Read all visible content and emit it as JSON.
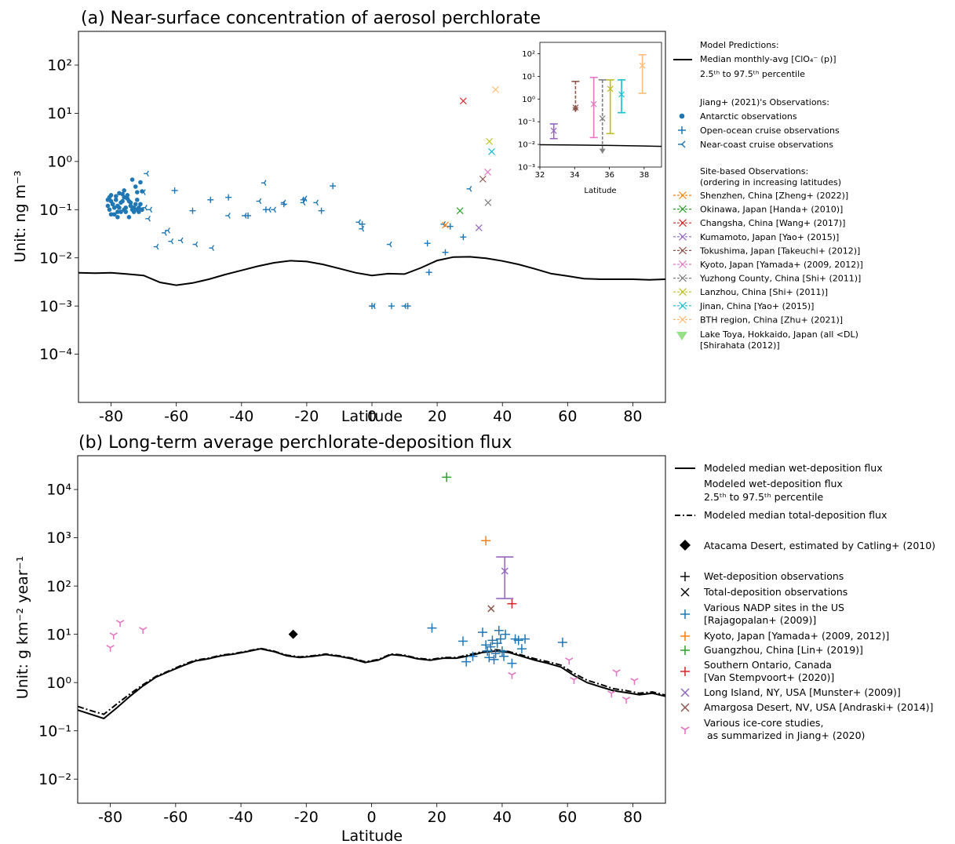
{
  "chart_data": [
    {
      "type": "scatter",
      "title": "(a) Near-surface concentration of aerosol perchlorate",
      "xlabel": "Latitude",
      "ylabel": "Unit: ng m⁻³",
      "xlim": [
        -90,
        90
      ],
      "ylim_log10": [
        -5,
        2.7
      ],
      "yscale": "log",
      "xticks": [
        "-80",
        "-60",
        "-40",
        "-20",
        "0",
        "20",
        "40",
        "60",
        "80"
      ],
      "yticks": [
        "10⁻⁴",
        "10⁻³",
        "10⁻²",
        "10⁻¹",
        "10⁰",
        "10¹",
        "10²"
      ],
      "legend": {
        "placement": "outside right",
        "group_model": "Model Predictions:",
        "model_median": "Median monthly-avg [ClO₄⁻ (p)]",
        "model_range": "2.5ᵗʰ to 97.5ᵗʰ percentile",
        "group_jiang": "Jiang+ (2021)'s Observations:",
        "antarctic": "Antarctic observations",
        "openocean": "Open-ocean cruise observations",
        "nearcoast": "Near-coast cruise observations",
        "group_site": "Site-based Observations:",
        "group_site_note": "(ordering in increasing latitudes)",
        "sites": [
          {
            "label": "Shenzhen, China [Zheng+ (2022)]",
            "color": "#ff7f0e"
          },
          {
            "label": "Okinawa, Japan [Handa+ (2010)]",
            "color": "#2ca02c"
          },
          {
            "label": "Changsha, China [Wang+ (2017)]",
            "color": "#d62728"
          },
          {
            "label": "Kumamoto, Japan [Yao+ (2015)]",
            "color": "#9467bd"
          },
          {
            "label": "Tokushima, Japan [Takeuchi+ (2012)]",
            "color": "#8c564b"
          },
          {
            "label": "Kyoto, Japan [Yamada+ (2009, 2012)]",
            "color": "#e377c2"
          },
          {
            "label": "Yuzhong County, China [Shi+ (2011)]",
            "color": "#7f7f7f"
          },
          {
            "label": "Lanzhou, China [Shi+ (2011)]",
            "color": "#bcbd22"
          },
          {
            "label": "Jinan, China [Yao+ (2015)]",
            "color": "#17becf"
          },
          {
            "label": "BTH region, China [Zhu+ (2021)]",
            "color": "#ffbb78"
          }
        ],
        "laketoya_1": "Lake Toya, Hokkaido, Japan (all <DL)",
        "laketoya_2": "[Shirahata (2012)]"
      },
      "model_median_line": {
        "x": [
          -90,
          -85,
          -80,
          -75,
          -70,
          -65,
          -60,
          -55,
          -50,
          -45,
          -40,
          -35,
          -30,
          -25,
          -20,
          -15,
          -10,
          -5,
          0,
          5,
          10,
          15,
          20,
          25,
          30,
          35,
          40,
          45,
          50,
          55,
          60,
          65,
          70,
          75,
          80,
          85,
          90
        ],
        "y": [
          0.0049,
          0.0048,
          0.0049,
          0.0046,
          0.0043,
          0.0031,
          0.0027,
          0.003,
          0.0036,
          0.0045,
          0.0055,
          0.0067,
          0.0079,
          0.0087,
          0.0084,
          0.0073,
          0.006,
          0.0049,
          0.0043,
          0.0047,
          0.0046,
          0.0062,
          0.0088,
          0.0104,
          0.0105,
          0.0098,
          0.0086,
          0.0073,
          0.0059,
          0.0047,
          0.0042,
          0.0037,
          0.0036,
          0.0036,
          0.0036,
          0.0035,
          0.0036
        ]
      },
      "antarctic": {
        "x": [
          -81,
          -80.5,
          -80,
          -79.5,
          -79,
          -78.5,
          -78,
          -77.5,
          -77,
          -76.5,
          -76,
          -75.5,
          -75,
          -74.5,
          -74,
          -73.5,
          -73,
          -72.5,
          -72,
          -71.5,
          -71,
          -70.5,
          -81,
          -80,
          -79,
          -78,
          -77,
          -76,
          -75,
          -74,
          -73,
          -72,
          -71,
          -80.5,
          -79.5,
          -78.5,
          -77.5,
          -76.5,
          -75.5,
          -74.5,
          -73.5,
          -72.5,
          -71.5,
          -80,
          -78,
          -76,
          -74,
          -72,
          -70.5
        ],
        "y": [
          0.16,
          0.1,
          0.2,
          0.13,
          0.08,
          0.19,
          0.12,
          0.22,
          0.09,
          0.15,
          0.25,
          0.11,
          0.17,
          0.07,
          0.14,
          0.42,
          0.11,
          0.3,
          0.23,
          0.09,
          0.13,
          0.24,
          0.12,
          0.15,
          0.11,
          0.09,
          0.14,
          0.1,
          0.2,
          0.12,
          0.09,
          0.16,
          0.37,
          0.18,
          0.13,
          0.16,
          0.11,
          0.21,
          0.09,
          0.15,
          0.1,
          0.13,
          0.11,
          0.08,
          0.07,
          0.18,
          0.12,
          0.1,
          0.1
        ]
      },
      "openocean": {
        "x": [
          -60.5,
          -55,
          -49.5,
          -44,
          -38,
          -32.5,
          -27,
          -21,
          -15.5,
          -12,
          -3,
          0,
          6,
          11,
          17,
          17.5,
          22.5,
          24,
          28
        ],
        "y": [
          0.25,
          0.095,
          0.16,
          0.18,
          0.075,
          0.1,
          0.13,
          0.16,
          0.095,
          0.31,
          0.05,
          0.001,
          0.001,
          0.001,
          0.02,
          0.005,
          0.013,
          0.045,
          0.027
        ]
      },
      "nearcoast": {
        "x": [
          -70,
          -69.5,
          -69,
          -68.5,
          -68,
          -66,
          -63.5,
          -62.5,
          -61.5,
          -58.5,
          -54,
          -49,
          -44,
          -39,
          -34.5,
          -33,
          -31.5,
          -30,
          -27,
          -21,
          -20.5,
          -17,
          -4,
          -3,
          0.5,
          5.5,
          10,
          22,
          30
        ],
        "y": [
          0.23,
          0.11,
          0.56,
          0.065,
          0.1,
          0.017,
          0.033,
          0.037,
          0.022,
          0.023,
          0.019,
          0.016,
          0.075,
          0.075,
          0.15,
          0.36,
          0.1,
          0.1,
          0.14,
          0.14,
          0.17,
          0.14,
          0.055,
          0.04,
          0.001,
          0.019,
          0.001,
          0.05,
          0.27
        ]
      },
      "sites": {
        "x": [
          22.5,
          27,
          28,
          32.8,
          34,
          35.5,
          35.6,
          36,
          36.7,
          37.9
        ],
        "y": [
          0.048,
          0.095,
          18,
          0.042,
          0.43,
          0.6,
          0.14,
          2.6,
          1.6,
          31
        ]
      },
      "inset": {
        "xlabel": "Latitude",
        "xlim": [
          32,
          39
        ],
        "ylim_log10": [
          -3,
          2.5
        ],
        "xticks": [
          "32",
          "34",
          "36",
          "38"
        ],
        "yticks": [
          "10⁻³",
          "10⁻²",
          "10⁻¹",
          "10⁰",
          "10¹",
          "10²"
        ],
        "model_line": {
          "x": [
            32,
            34,
            36,
            38,
            39
          ],
          "y": [
            0.0097,
            0.0094,
            0.009,
            0.0085,
            0.0082
          ]
        },
        "points": [
          {
            "x": 32.8,
            "y": 0.04,
            "lo": 0.018,
            "hi": 0.08,
            "color": "#9467bd"
          },
          {
            "x": 34.05,
            "y": 0.42,
            "lo": 0.27,
            "hi": 6,
            "color": "#8c564b",
            "dashed": true
          },
          {
            "x": 35.1,
            "y": 0.6,
            "lo": 0.02,
            "hi": 9,
            "color": "#e377c2"
          },
          {
            "x": 35.6,
            "y": 0.14,
            "lo": 0.004,
            "hi": 7,
            "color": "#7f7f7f",
            "dashed": true
          },
          {
            "x": 36.05,
            "y": 2.8,
            "lo": 0.03,
            "hi": 7,
            "color": "#bcbd22"
          },
          {
            "x": 36.7,
            "y": 1.6,
            "lo": 0.25,
            "hi": 7,
            "color": "#17becf"
          },
          {
            "x": 37.9,
            "y": 30,
            "lo": 1.8,
            "hi": 90,
            "color": "#ffbb78"
          }
        ]
      }
    },
    {
      "type": "scatter",
      "title": "(b) Long-term average perchlorate-deposition flux",
      "xlabel": "Latitude",
      "ylabel": "Unit: g km⁻² year⁻¹",
      "xlim": [
        -90,
        90
      ],
      "ylim_log10": [
        -2.5,
        4.7
      ],
      "yscale": "log",
      "xticks": [
        "-80",
        "-60",
        "-40",
        "-20",
        "0",
        "20",
        "40",
        "60",
        "80"
      ],
      "yticks": [
        "10⁻²",
        "10⁻¹",
        "10⁰",
        "10¹",
        "10²",
        "10³",
        "10⁴"
      ],
      "legend": {
        "placement": "outside right",
        "wet_median": "Modeled median wet-deposition flux",
        "wet_range_1": "Modeled wet-deposition flux",
        "wet_range_2": "2.5ᵗʰ to 97.5ᵗʰ percentile",
        "total_median": "Modeled median total-deposition flux",
        "atacama": "Atacama Desert, estimated by Catling+ (2010)",
        "wet_obs": "Wet-deposition observations",
        "total_obs": "Total-deposition observations",
        "nadp_1": "Various NADP sites in the US",
        "nadp_2": "[Rajagopalan+ (2009)]",
        "kyoto": "Kyoto, Japan [Yamada+ (2009, 2012)]",
        "guangzhou": "Guangzhou, China [Lin+ (2019)]",
        "ontario_1": "Southern Ontario, Canada",
        "ontario_2": "[Van Stempvoort+ (2020)]",
        "longisland": "Long Island, NY, USA [Munster+ (2009)]",
        "amargosa": "Amargosa Desert, NV, USA [Andraski+ (2014)]",
        "icecore_1": "Various ice-core studies,",
        "icecore_2": "as summarized in Jiang+ (2020)"
      },
      "wet_median": {
        "x": [
          -90,
          -85,
          -82,
          -78,
          -74,
          -70,
          -66,
          -62,
          -58,
          -54,
          -50,
          -46,
          -42,
          -38,
          -34,
          -30,
          -26,
          -22,
          -18,
          -14,
          -10,
          -6,
          -2,
          2,
          6,
          10,
          14,
          18,
          22,
          26,
          30,
          34,
          38,
          42,
          46,
          50,
          54,
          58,
          62,
          66,
          70,
          74,
          78,
          82,
          86,
          90
        ],
        "y": [
          0.27,
          0.21,
          0.18,
          0.3,
          0.52,
          0.85,
          1.3,
          1.7,
          2.2,
          2.8,
          3.1,
          3.6,
          3.9,
          4.4,
          5.0,
          4.4,
          3.6,
          3.3,
          3.5,
          3.8,
          3.5,
          3.1,
          2.6,
          2.9,
          3.8,
          3.6,
          3.1,
          2.9,
          3.2,
          3.2,
          3.6,
          4.2,
          4.5,
          4.2,
          3.5,
          2.9,
          2.5,
          2.1,
          1.4,
          1.0,
          0.82,
          0.68,
          0.62,
          0.56,
          0.6,
          0.52
        ]
      },
      "total_median": {
        "x": [
          -90,
          -85,
          -82,
          -78,
          -74,
          -70,
          -66,
          -62,
          -58,
          -54,
          -50,
          -46,
          -42,
          -38,
          -34,
          -30,
          -26,
          -22,
          -18,
          -14,
          -10,
          -6,
          -2,
          2,
          6,
          10,
          14,
          18,
          22,
          26,
          30,
          34,
          38,
          42,
          46,
          50,
          54,
          58,
          62,
          66,
          70,
          74,
          78,
          82,
          86,
          90
        ],
        "y": [
          0.32,
          0.25,
          0.22,
          0.36,
          0.58,
          0.9,
          1.35,
          1.75,
          2.3,
          2.9,
          3.2,
          3.7,
          4.0,
          4.5,
          5.1,
          4.5,
          3.7,
          3.4,
          3.6,
          3.9,
          3.6,
          3.2,
          2.7,
          3.0,
          3.9,
          3.7,
          3.2,
          3.0,
          3.3,
          3.3,
          3.8,
          4.4,
          4.8,
          4.4,
          3.7,
          3.1,
          2.7,
          2.3,
          1.55,
          1.12,
          0.92,
          0.75,
          0.68,
          0.6,
          0.64,
          0.55
        ]
      },
      "atacama": {
        "x": [
          -24
        ],
        "y": [
          10
        ]
      },
      "nadp": {
        "x": [
          18.5,
          28,
          29,
          31,
          34,
          35,
          35.5,
          36,
          36.5,
          37,
          37.5,
          38,
          38.5,
          39,
          39.5,
          40,
          40.5,
          41,
          43,
          44,
          45,
          46,
          47,
          58.5
        ],
        "y": [
          13.5,
          7.2,
          2.7,
          3.5,
          11,
          6,
          4.5,
          3.3,
          5.5,
          7.5,
          3,
          4,
          6.5,
          12,
          8,
          4.5,
          3.5,
          10,
          2.5,
          8,
          7.5,
          5,
          8,
          6.8
        ]
      },
      "kyoto": {
        "x": [
          35
        ],
        "y": [
          870
        ]
      },
      "guangzhou": {
        "x": [
          23
        ],
        "y": [
          18000
        ]
      },
      "ontario": {
        "x": [
          43
        ],
        "y": [
          43
        ]
      },
      "longisland": {
        "x": [
          40.8
        ],
        "y": [
          205
        ],
        "lo": 55,
        "hi": 400
      },
      "amargosa": {
        "x": [
          36.6
        ],
        "y": [
          34
        ]
      },
      "icecore": {
        "x": [
          -91,
          -80,
          -79,
          -77,
          -70,
          43,
          60.5,
          62,
          73.5,
          75,
          78,
          80.5
        ],
        "y": [
          5.2,
          5.3,
          9.6,
          17.5,
          12.5,
          1.45,
          2.9,
          1.15,
          0.6,
          1.65,
          0.45,
          1.1
        ]
      }
    }
  ]
}
